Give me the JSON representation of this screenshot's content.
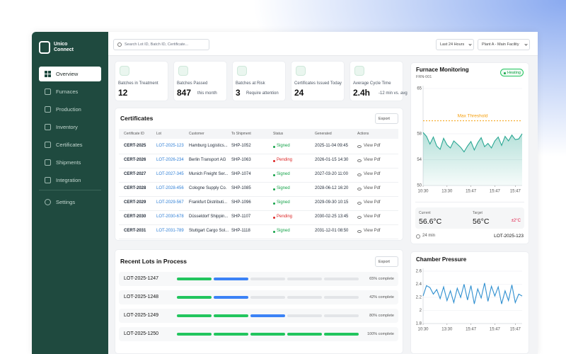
{
  "sidebar": {
    "brand": [
      "Unico",
      "Connect"
    ],
    "nav": [
      "Overview",
      "Furnaces",
      "Production",
      "Inventory",
      "Certificates",
      "Shipments",
      "Integration"
    ],
    "settings": "Settings"
  },
  "topbar": {
    "search_placeholder": "Search Lot ID, Batch ID, Certificate...",
    "range": "Last 24 Hours",
    "plant": "Plant A - Main Facility"
  },
  "stats": [
    {
      "label": "Batches in Treatment",
      "value": "12"
    },
    {
      "label": "Batches Passed",
      "value": "847",
      "note": "this month"
    },
    {
      "label": "Batches at Risk",
      "value": "3",
      "note": "Require attention"
    },
    {
      "label": "Certificates Issued Today",
      "value": "24"
    },
    {
      "label": "Average Cycle Time",
      "value": "2.4h",
      "note": "-12 min vs. avg"
    }
  ],
  "certificates": {
    "title": "Certificates",
    "export": "Export",
    "columns": [
      "Certificate ID",
      "Lot",
      "Customer",
      "To Shipment",
      "Status",
      "Generated",
      "Actions"
    ],
    "rows": [
      [
        "CERT-2025",
        "LOT-2025-123",
        "Hamburg Logistics...",
        "SHP-1052",
        "Signed",
        "2025-11-04 09:45",
        "View Pdf"
      ],
      [
        "CERT-2026",
        "LOT-2026-234",
        "Berlin Transport AG",
        "SHP-1063",
        "Pending",
        "2026-01-15 14:30",
        "View Pdf"
      ],
      [
        "CERT-2027",
        "LOT-2027-345",
        "Munich Freight Ser...",
        "SHP-1074",
        "Signed",
        "2027-03-20 11:00",
        "View Pdf"
      ],
      [
        "CERT-2028",
        "LOT-2028-456",
        "Cologne Supply Co.",
        "SHP-1085",
        "Signed",
        "2028-06-12 16:20",
        "View Pdf"
      ],
      [
        "CERT-2029",
        "LOT-2029-567",
        "Frankfurt Distributi...",
        "SHP-1096",
        "Signed",
        "2029-09-30 10:15",
        "View Pdf"
      ],
      [
        "CERT-2030",
        "LOT-2030-678",
        "Düsseldorf Shippin...",
        "SHP-1107",
        "Pending",
        "2030-02-25 13:45",
        "View Pdf"
      ],
      [
        "CERT-2031",
        "LOT-2031-789",
        "Stuttgart Cargo Sol...",
        "SHP-1118",
        "Signed",
        "2031-12-01 08:50",
        "View Pdf"
      ]
    ]
  },
  "lots": {
    "title": "Recent Lots in Process",
    "export": "Export",
    "rows": [
      {
        "id": "LOT-2025-1247",
        "progress": "65% complete"
      },
      {
        "id": "LOT-2025-1248",
        "progress": "42% complete"
      },
      {
        "id": "LOT-2025-1249",
        "progress": "80% complete"
      },
      {
        "id": "LOT-2025-1250",
        "progress": "100% complete"
      }
    ]
  },
  "furnace_readings": {
    "current_label": "Current",
    "current": "56.6°C",
    "target_label": "Target",
    "target": "56°C",
    "tolerance": "±2°C",
    "elapsed": "24 min",
    "lot": "LOT-2025-123"
  },
  "chart_data": [
    {
      "type": "line",
      "title": "Furnace Monitoring",
      "subtitle": "FRN-001",
      "status": "Heating",
      "categories": [
        "10:30",
        null,
        null,
        null,
        null,
        null,
        null,
        "13:30",
        null,
        null,
        null,
        null,
        null,
        null,
        "15:47",
        null,
        null,
        null,
        null,
        null,
        null,
        "15:47",
        null,
        null,
        null,
        null,
        null,
        "15:47",
        null,
        null
      ],
      "series": [
        {
          "color": "#2aa793",
          "values": [
            58.2,
            57.6,
            56.4,
            57.5,
            56.1,
            55.6,
            57.3,
            56.3,
            55.8,
            56.9,
            56.4,
            55.9,
            55.2,
            56.1,
            56.8,
            55.5,
            56.6,
            57.4,
            56.0,
            56.5,
            55.8,
            56.9,
            57.5,
            56.2,
            57.6,
            56.9,
            57.8,
            57.1,
            57.2,
            58.0
          ]
        }
      ],
      "ylim": [
        50,
        65
      ],
      "yticks": [
        50,
        54,
        58,
        65
      ],
      "grid": true,
      "threshold": {
        "label": "Max Threshold",
        "value": 60,
        "color": "#f59e0b"
      }
    },
    {
      "type": "line",
      "title": "Chamber Pressure",
      "categories": [
        "10:30",
        null,
        null,
        null,
        null,
        null,
        null,
        "13:30",
        null,
        null,
        null,
        null,
        null,
        null,
        "15:47",
        null,
        null,
        null,
        null,
        null,
        null,
        "15:47",
        null,
        null,
        null,
        null,
        null,
        "15:47",
        null,
        null
      ],
      "series": [
        {
          "color": "#2f8fd0",
          "values": [
            2.22,
            2.38,
            2.35,
            2.25,
            2.32,
            2.18,
            2.36,
            2.15,
            2.3,
            2.12,
            2.34,
            2.2,
            2.4,
            2.16,
            2.38,
            2.1,
            2.33,
            2.19,
            2.42,
            2.14,
            2.37,
            2.22,
            2.36,
            2.1,
            2.3,
            2.15,
            2.39,
            2.12,
            2.25,
            2.22
          ]
        }
      ],
      "ylim": [
        1.8,
        2.6
      ],
      "yticks": [
        1.8,
        2,
        2.2,
        2.4,
        2.6
      ],
      "grid": true
    }
  ]
}
